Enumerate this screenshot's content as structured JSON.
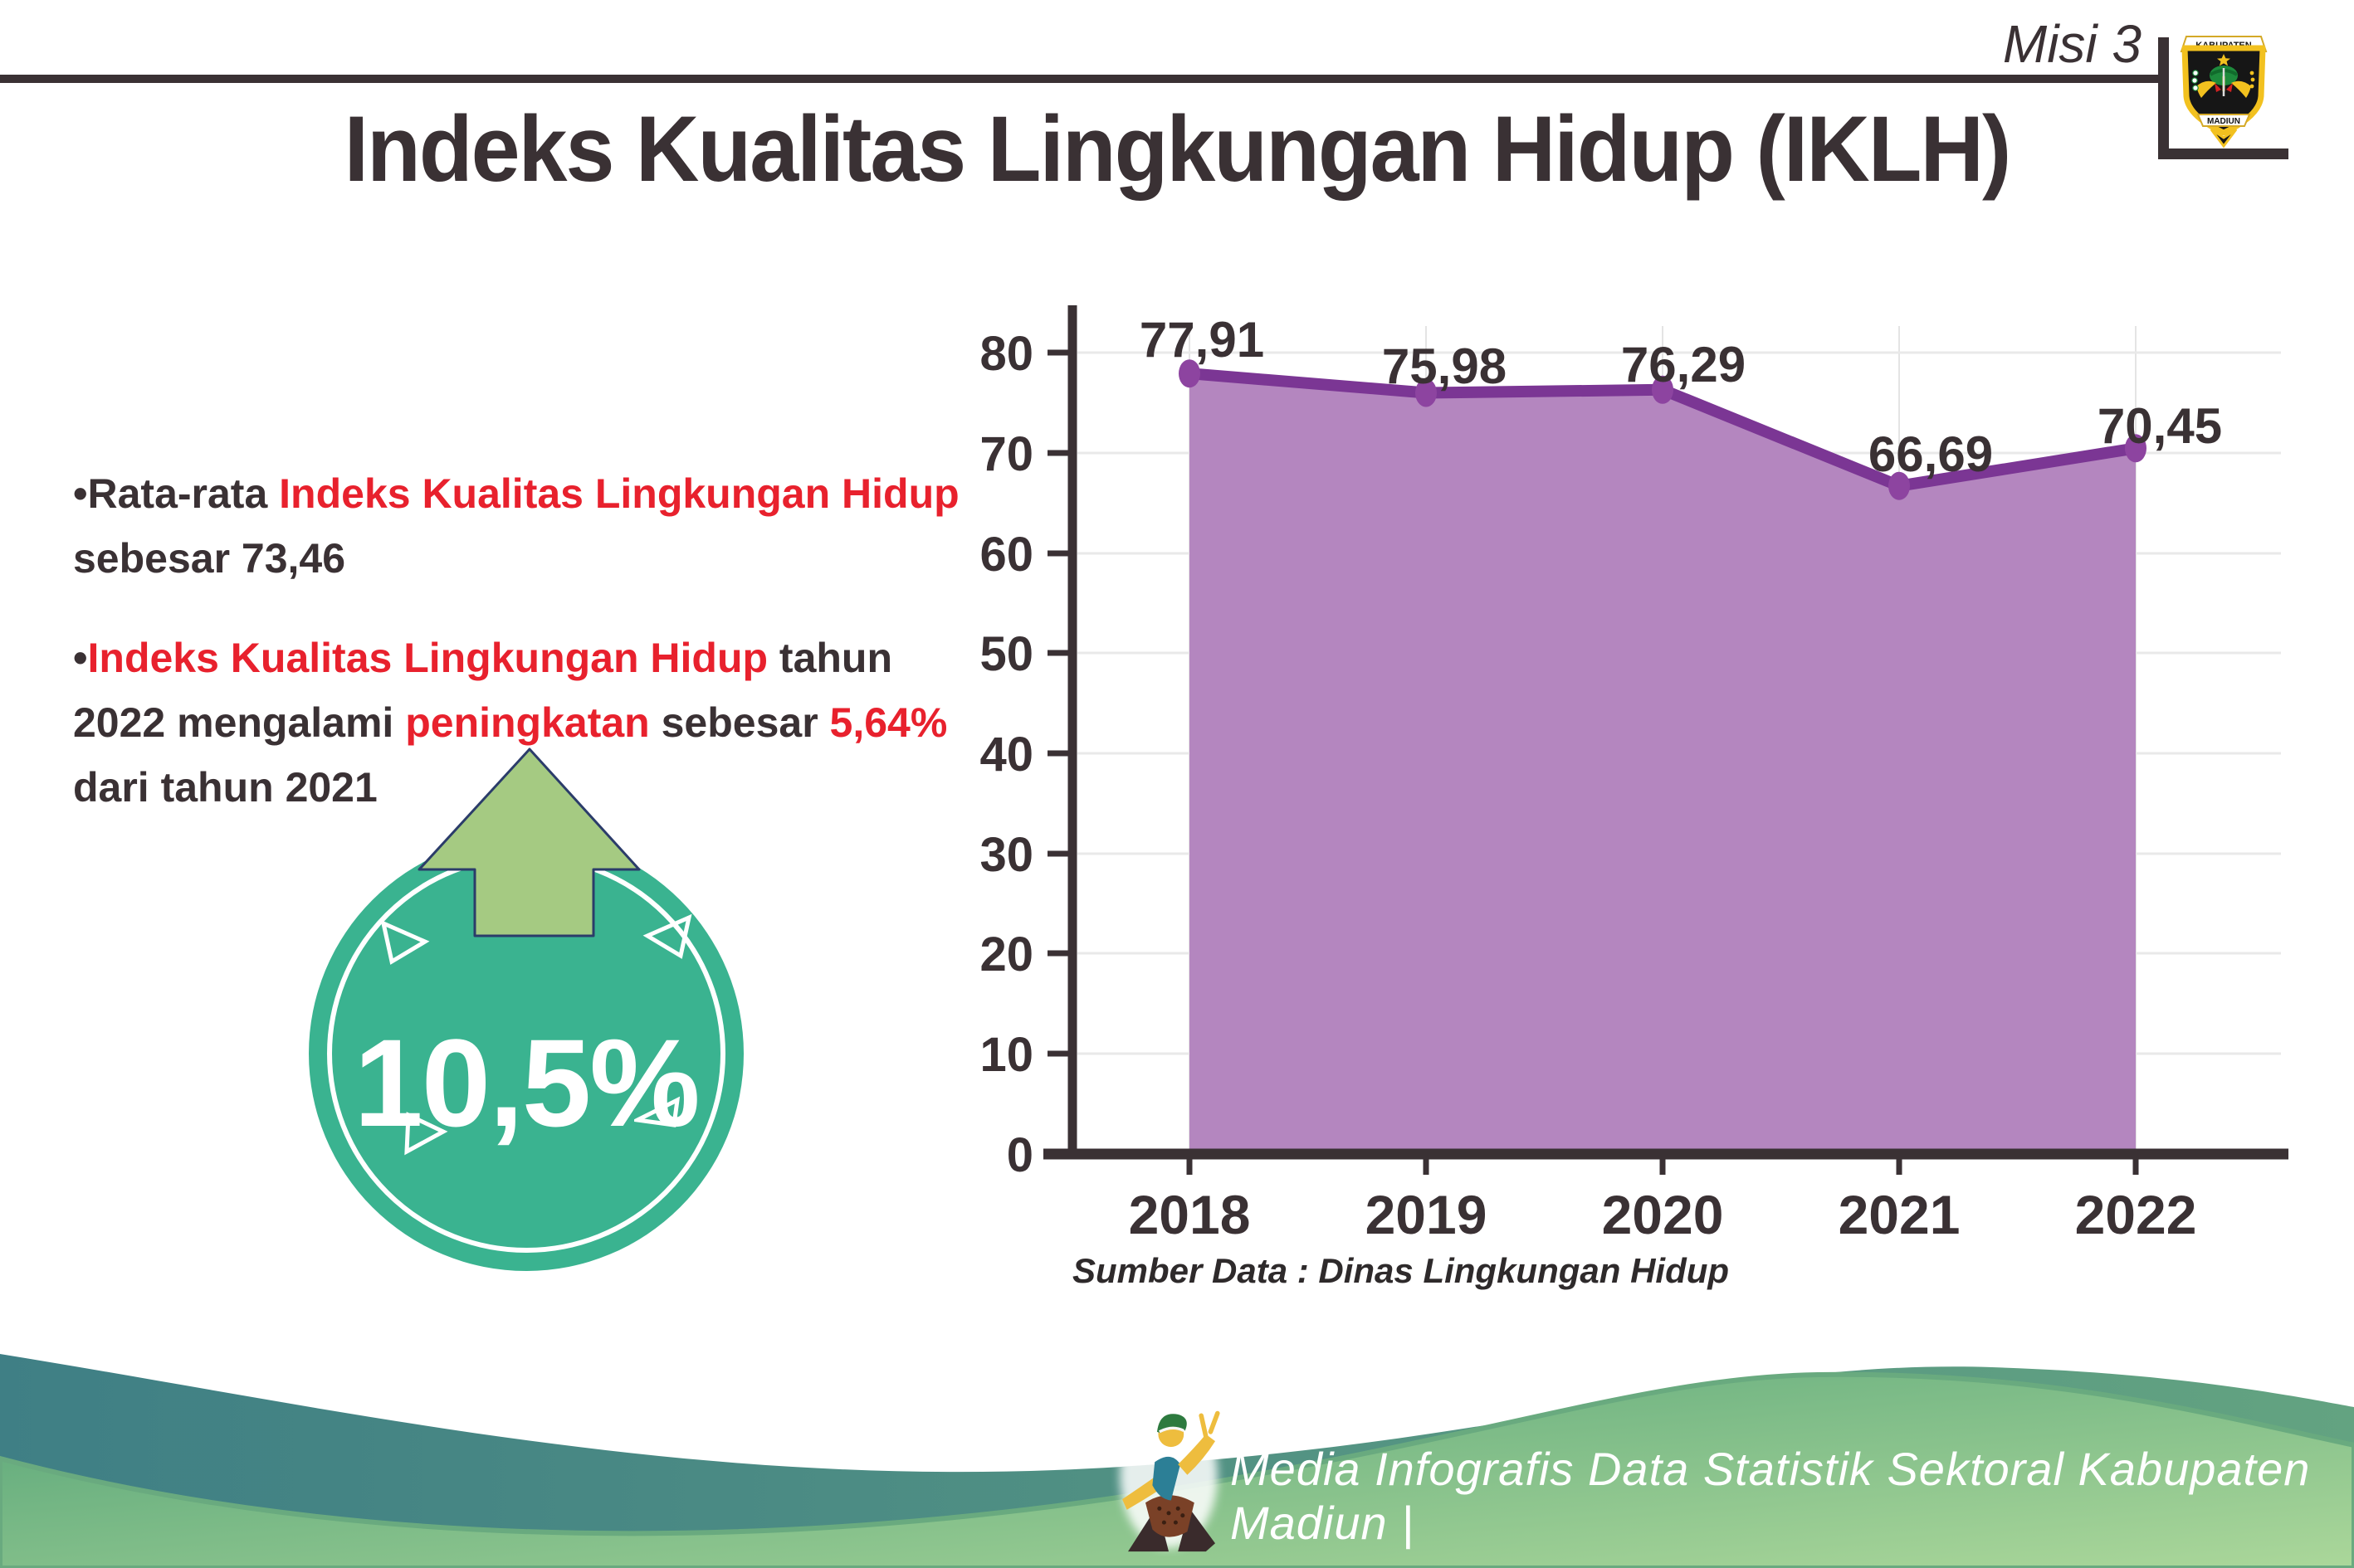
{
  "header": {
    "misi_label": "Misi 3",
    "logo": {
      "top_text": "KABUPATEN",
      "bottom_text": "MADIUN"
    }
  },
  "title": "Indeks Kualitas Lingkungan Hidup (IKLH)",
  "bullets": {
    "b1": {
      "seg1": "•Rata-rata ",
      "seg2": "Indeks Kualitas Lingkungan Hidup",
      "seg3": " sebesar 73,46"
    },
    "b2": {
      "seg1": "•",
      "seg2": "Indeks Kualitas Lingkungan Hidup",
      "seg3": " tahun 2022 mengalami ",
      "seg4": "peningkatan",
      "seg5": " sebesar ",
      "seg6": "5,64%",
      "seg7": " dari tahun 2021"
    }
  },
  "badge": {
    "value": "10,5%"
  },
  "chart_data": {
    "type": "area",
    "title": "",
    "xlabel": "",
    "ylabel": "",
    "categories": [
      "2018",
      "2019",
      "2020",
      "2021",
      "2022"
    ],
    "values": [
      77.91,
      75.98,
      76.29,
      66.69,
      70.45
    ],
    "value_labels": [
      "77,91",
      "75,98",
      "76,29",
      "66,69",
      "70,45"
    ],
    "y_ticks": [
      "80",
      "70",
      "60",
      "50",
      "40",
      "30",
      "20",
      "10",
      "0"
    ],
    "ylim": [
      0,
      80
    ],
    "grid": true,
    "legend": "none",
    "line_color": "#7b3694",
    "fill_color": "#b486bf",
    "marker_color": "#8d44a0",
    "source": "Sumber Data : Dinas Lingkungan Hidup"
  },
  "footer": {
    "credit": "Media Infografis Data Statistik Sektoral Kabupaten Madiun |"
  },
  "colors": {
    "dark_text": "#3a3134",
    "accent_red": "#e8212d",
    "badge_teal": "#3ab390",
    "arrow_green": "#a5ca82",
    "arrow_outline_navy": "#2b3c6a",
    "footer_teal_band": "#3f7f85",
    "footer_green_wave": "#56a478",
    "footer_green_light": "#abd79a"
  }
}
